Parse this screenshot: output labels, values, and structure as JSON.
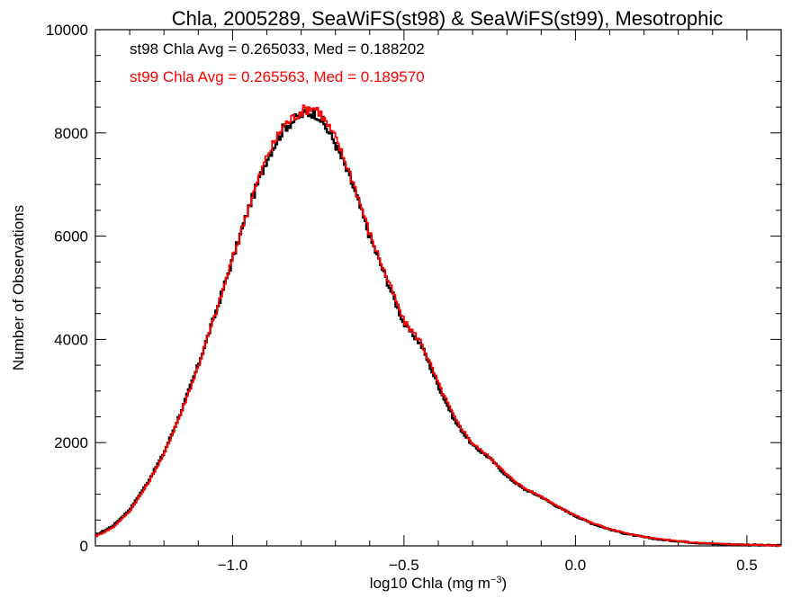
{
  "chart_data": {
    "type": "line",
    "title": "Chla, 2005289, SeaWiFS(st98) & SeaWiFS(st99), Mesotrophic",
    "xlabel": "log10 Chla (mg m",
    "xlabel_sup": "−3",
    "xlabel_suffix": ")",
    "ylabel": "Number of Observations",
    "xlim": [
      -1.4,
      0.6
    ],
    "ylim": [
      0,
      10000
    ],
    "x_ticks": [
      -1.0,
      -0.5,
      0.0,
      0.5
    ],
    "x_tick_labels": [
      "−1.0",
      "−0.5",
      "0.0",
      "0.5"
    ],
    "y_ticks": [
      0,
      2000,
      4000,
      6000,
      8000,
      10000
    ],
    "y_tick_labels": [
      "0",
      "2000",
      "4000",
      "6000",
      "8000",
      "10000"
    ],
    "annotations": [
      {
        "text": "st98 Chla Avg = 0.265033, Med = 0.188202",
        "color": "#000000"
      },
      {
        "text": "st99 Chla Avg = 0.265563, Med = 0.189570",
        "color": "#ff0000"
      }
    ],
    "series": [
      {
        "color": "#000000",
        "x": [
          -1.4,
          -1.35,
          -1.3,
          -1.25,
          -1.2,
          -1.15,
          -1.1,
          -1.05,
          -1.0,
          -0.95,
          -0.9,
          -0.85,
          -0.8,
          -0.77,
          -0.75,
          -0.7,
          -0.65,
          -0.6,
          -0.55,
          -0.5,
          -0.45,
          -0.4,
          -0.35,
          -0.3,
          -0.25,
          -0.2,
          -0.15,
          -0.1,
          -0.05,
          0.0,
          0.05,
          0.1,
          0.15,
          0.2,
          0.25,
          0.3,
          0.35,
          0.4,
          0.45,
          0.5,
          0.55,
          0.6
        ],
        "y": [
          200,
          380,
          700,
          1200,
          1800,
          2600,
          3500,
          4500,
          5550,
          6600,
          7500,
          8100,
          8350,
          8400,
          8350,
          7800,
          7000,
          6000,
          5150,
          4300,
          3900,
          3100,
          2400,
          1950,
          1700,
          1350,
          1100,
          950,
          750,
          580,
          430,
          320,
          230,
          170,
          120,
          90,
          60,
          40,
          30,
          20,
          12,
          8
        ]
      },
      {
        "color": "#ff0000",
        "x": [
          -1.4,
          -1.35,
          -1.3,
          -1.25,
          -1.2,
          -1.15,
          -1.1,
          -1.05,
          -1.0,
          -0.95,
          -0.9,
          -0.85,
          -0.8,
          -0.77,
          -0.75,
          -0.7,
          -0.65,
          -0.6,
          -0.55,
          -0.5,
          -0.45,
          -0.4,
          -0.35,
          -0.3,
          -0.25,
          -0.2,
          -0.15,
          -0.1,
          -0.05,
          0.0,
          0.05,
          0.1,
          0.15,
          0.2,
          0.25,
          0.3,
          0.35,
          0.4,
          0.45,
          0.5,
          0.55,
          0.6
        ],
        "y": [
          180,
          350,
          670,
          1170,
          1780,
          2580,
          3480,
          4480,
          5560,
          6620,
          7550,
          8150,
          8420,
          8500,
          8450,
          7900,
          7100,
          6050,
          5200,
          4350,
          3950,
          3150,
          2450,
          1980,
          1720,
          1380,
          1120,
          960,
          760,
          590,
          440,
          330,
          240,
          175,
          125,
          92,
          62,
          42,
          31,
          21,
          13,
          9
        ]
      }
    ]
  }
}
